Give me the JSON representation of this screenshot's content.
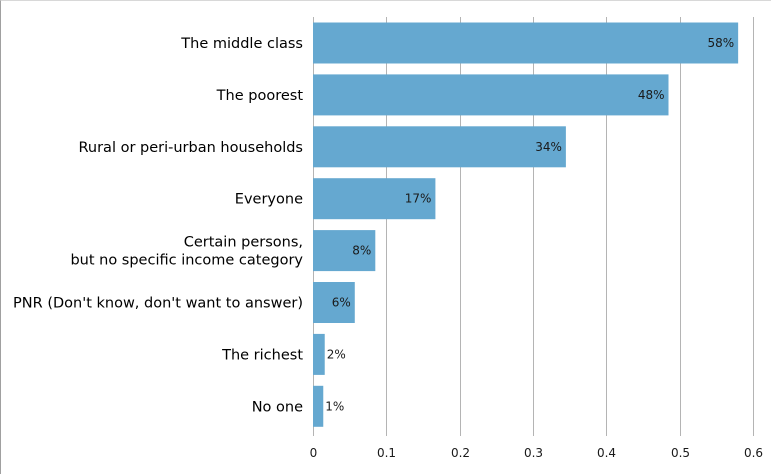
{
  "chart_data": {
    "type": "bar",
    "orientation": "horizontal",
    "categories": [
      [
        "The middle class"
      ],
      [
        "The poorest"
      ],
      [
        "Rural or peri-urban households"
      ],
      [
        "Everyone"
      ],
      [
        "Certain persons,",
        "but no specific income category"
      ],
      [
        "PNR (Don't know, don't want to answer)"
      ],
      [
        "The richest"
      ],
      [
        "No one"
      ]
    ],
    "values": [
      0.58,
      0.485,
      0.345,
      0.167,
      0.085,
      0.057,
      0.016,
      0.014
    ],
    "value_labels": [
      "58%",
      "48%",
      "34%",
      "17%",
      "8%",
      "6%",
      "2%",
      "1%"
    ],
    "x_ticks": [
      "0",
      "0.1",
      "0.2",
      "0.3",
      "0.4",
      "0.5",
      "0.6"
    ],
    "xlim": [
      0,
      0.6
    ],
    "grid": "vertical",
    "bar_color": "#65a8d0",
    "grid_color": "#b4b4b4"
  }
}
